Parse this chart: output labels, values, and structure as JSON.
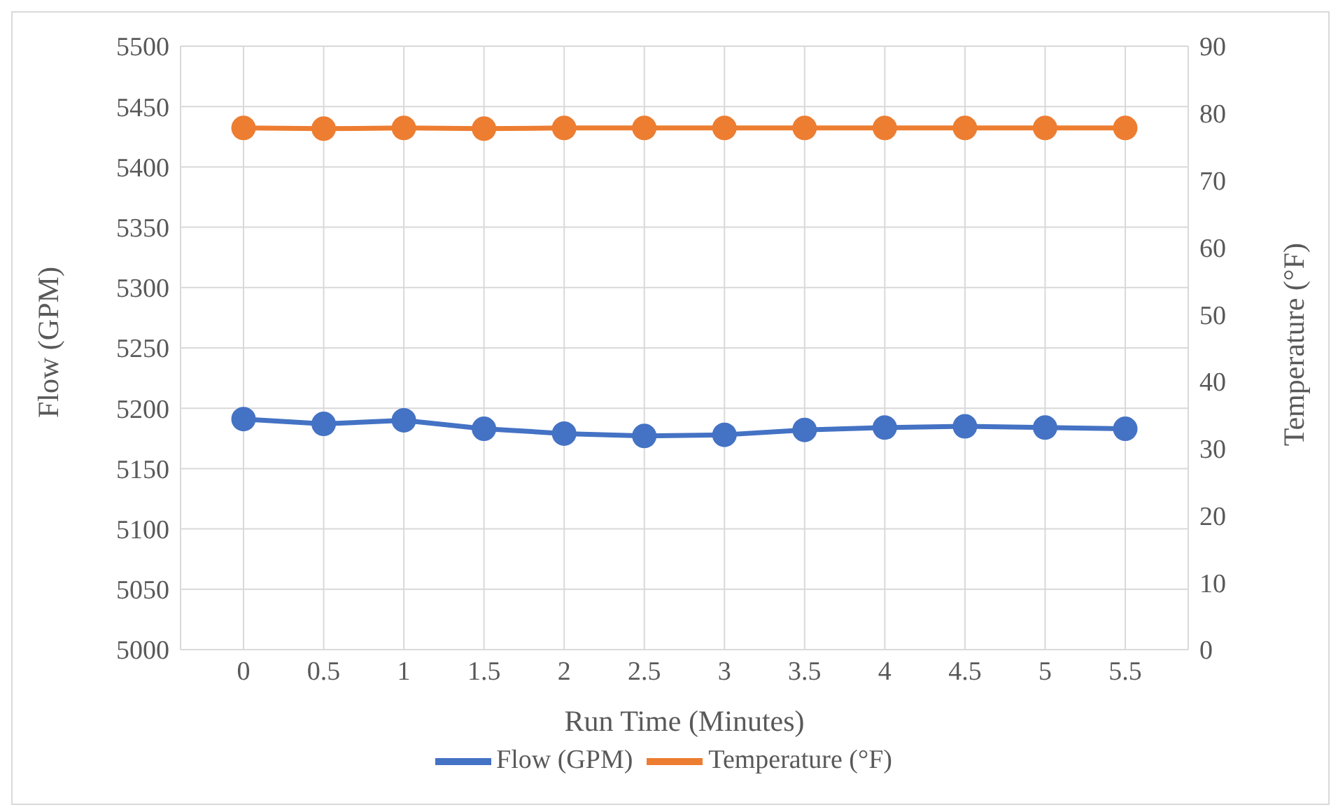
{
  "chart_data": {
    "type": "line",
    "xlabel": "Run Time (Minutes)",
    "ylabel": "Flow (GPM)",
    "y2label": "Temperature (°F)",
    "categories": [
      "0",
      "0.5",
      "1",
      "1.5",
      "2",
      "2.5",
      "3",
      "3.5",
      "4",
      "4.5",
      "5",
      "5.5"
    ],
    "series": [
      {
        "name": "Flow (GPM)",
        "color": "#4472c4",
        "values": [
          5191,
          5187,
          5190,
          5183,
          5179,
          5177,
          5178,
          5182,
          5184,
          5185,
          5184,
          5183
        ]
      },
      {
        "name": "Temperature (°F)",
        "color": "#ed7d31",
        "axis": "y2",
        "values": [
          77.8,
          77.7,
          77.8,
          77.7,
          77.8,
          77.8,
          77.8,
          77.8,
          77.8,
          77.8,
          77.8,
          77.8
        ]
      }
    ],
    "ylim": [
      5000,
      5500
    ],
    "yticks": [
      5000,
      5050,
      5100,
      5150,
      5200,
      5250,
      5300,
      5350,
      5400,
      5450,
      5500
    ],
    "y2lim": [
      0,
      90
    ],
    "y2ticks": [
      0,
      10,
      20,
      30,
      40,
      50,
      60,
      70,
      80,
      90
    ],
    "grid": true,
    "legend": "bottom",
    "marker": "circle",
    "line_style": "solid"
  }
}
